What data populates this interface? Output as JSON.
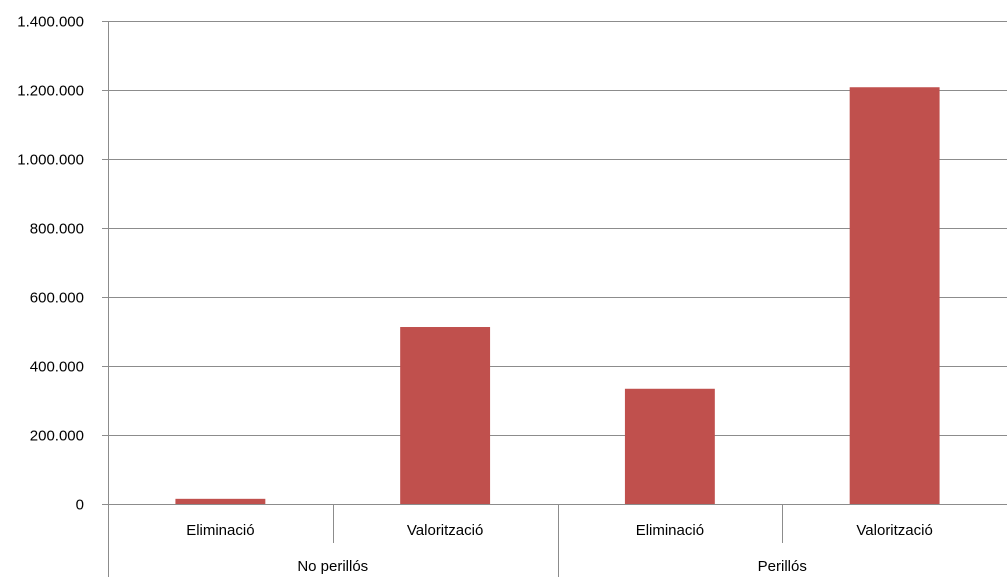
{
  "chart_data": {
    "type": "bar",
    "title": "",
    "xlabel": "",
    "ylabel": "",
    "ylim": [
      0,
      1400000
    ],
    "y_ticks": [
      0,
      200000,
      400000,
      600000,
      800000,
      1000000,
      1200000,
      1400000
    ],
    "y_tick_labels": [
      "0",
      "200.000",
      "400.000",
      "600.000",
      "800.000",
      "1.000.000",
      "1.200.000",
      "1.400.000"
    ],
    "grid": true,
    "legend": "none",
    "groups": [
      {
        "label": "No perillós",
        "categories": [
          "Eliminació",
          "Valorització"
        ],
        "values": [
          15000,
          513000
        ]
      },
      {
        "label": "Perillós",
        "categories": [
          "Eliminació",
          "Valorització"
        ],
        "values": [
          334000,
          1208000
        ]
      }
    ],
    "bar_color": "#c0504d"
  }
}
